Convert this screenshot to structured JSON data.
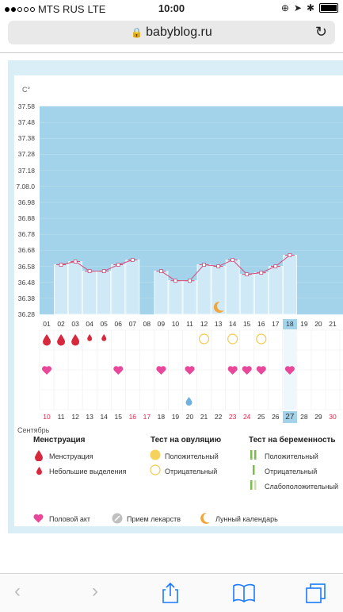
{
  "status": {
    "carrier": "MTS RUS",
    "network": "LTE",
    "time": "10:00"
  },
  "browser": {
    "url": "babyblog.ru"
  },
  "chart": {
    "unit": "C°",
    "y_labels": [
      "37.58",
      "37.48",
      "37.38",
      "37.28",
      "37.18",
      "7.08.0",
      "36.98",
      "36.88",
      "36.78",
      "36.68",
      "36.58",
      "36.48",
      "36.38",
      "36.28"
    ],
    "cycle_days": [
      "01",
      "02",
      "03",
      "04",
      "05",
      "06",
      "07",
      "08",
      "09",
      "10",
      "11",
      "12",
      "13",
      "14",
      "15",
      "16",
      "17",
      "18",
      "19",
      "20",
      "21"
    ],
    "dates": [
      "10",
      "11",
      "12",
      "13",
      "14",
      "15",
      "16",
      "17",
      "18",
      "19",
      "20",
      "21",
      "22",
      "23",
      "24",
      "25",
      "26",
      "27",
      "28",
      "29",
      "30"
    ],
    "month": "Сентябрь"
  },
  "chart_data": {
    "type": "bar",
    "title": "",
    "categories": [
      "01",
      "02",
      "03",
      "04",
      "05",
      "06",
      "07",
      "08",
      "09",
      "10",
      "11",
      "12",
      "13",
      "14",
      "15",
      "16",
      "17",
      "18",
      "19",
      "20",
      "21"
    ],
    "series": [
      {
        "name": "",
        "values": [
          null,
          36.59,
          36.61,
          36.55,
          36.55,
          36.59,
          36.62,
          null,
          36.55,
          36.49,
          36.49,
          36.59,
          36.58,
          36.62,
          36.53,
          36.54,
          36.58,
          36.65,
          null,
          null,
          null
        ]
      }
    ],
    "ylim": [
      36.28,
      37.58
    ],
    "selected_day": "18",
    "menstruation_days": [
      "01",
      "02",
      "03",
      "04",
      "05"
    ],
    "light_spotting_days": [
      "04",
      "05"
    ],
    "ovulation_test_negative_days": [
      "12",
      "14",
      "16"
    ],
    "intercourse_days": [
      "01",
      "06",
      "09",
      "11",
      "14",
      "15",
      "16",
      "18"
    ],
    "moon_day": "13",
    "medication_day": "11"
  },
  "legend": {
    "menstruation": {
      "title": "Менструация",
      "items": [
        "Менструация",
        "Небольшие выделения"
      ]
    },
    "ovulation": {
      "title": "Тест на овуляцию",
      "items": [
        "Положительный",
        "Отрицательный"
      ]
    },
    "pregnancy": {
      "title": "Тест на беременность",
      "items": [
        "Положительный",
        "Отрицательный",
        "Слабоположительный"
      ]
    },
    "bottom": [
      "Половой акт",
      "Прием лекарств",
      "Лунный календарь"
    ]
  },
  "colors": {
    "plot_bg": "#a2d3ea",
    "bar": "#cfe9f6",
    "line": "#d84a7a",
    "pink": "#e8479a",
    "red": "#d8283d",
    "orange": "#f2a63a"
  }
}
